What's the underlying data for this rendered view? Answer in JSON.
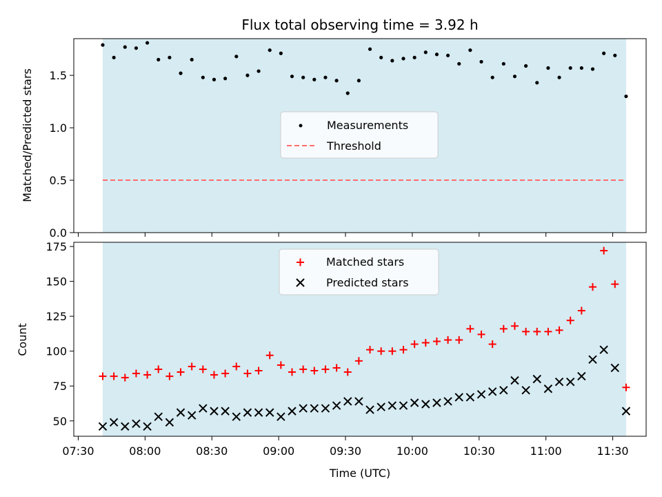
{
  "title": "Flux total observing time = 3.92 h",
  "colors": {
    "observing_window": "#add8e6",
    "measurement": "#000000",
    "threshold": "#ff6b6b",
    "matched": "#ff0000",
    "predicted": "#000000"
  },
  "chart_data": [
    {
      "type": "scatter",
      "panel": "top",
      "ylabel": "Matched/Predicted stars",
      "ylim": [
        0,
        1.85
      ],
      "yticks": [
        0.0,
        0.5,
        1.0,
        1.5
      ],
      "ytick_labels": [
        "0.0",
        "0.5",
        "1.0",
        "1.5"
      ],
      "observing_window_x": [
        "07:41",
        "11:36"
      ],
      "threshold": 0.5,
      "legend": {
        "placement": "center",
        "entries": [
          "Measurements",
          "Threshold"
        ]
      },
      "series": [
        {
          "name": "Measurements",
          "x": [
            "07:41",
            "07:46",
            "07:51",
            "07:56",
            "08:01",
            "08:06",
            "08:11",
            "08:16",
            "08:21",
            "08:26",
            "08:31",
            "08:36",
            "08:41",
            "08:46",
            "08:51",
            "08:56",
            "09:01",
            "09:06",
            "09:11",
            "09:16",
            "09:21",
            "09:26",
            "09:31",
            "09:36",
            "09:41",
            "09:46",
            "09:51",
            "09:56",
            "10:01",
            "10:06",
            "10:11",
            "10:16",
            "10:21",
            "10:26",
            "10:31",
            "10:36",
            "10:41",
            "10:46",
            "10:51",
            "10:56",
            "11:01",
            "11:06",
            "11:11",
            "11:16",
            "11:21",
            "11:26",
            "11:31",
            "11:36"
          ],
          "y": [
            1.79,
            1.67,
            1.77,
            1.76,
            1.81,
            1.65,
            1.67,
            1.52,
            1.65,
            1.48,
            1.46,
            1.47,
            1.68,
            1.5,
            1.54,
            1.74,
            1.71,
            1.49,
            1.48,
            1.46,
            1.48,
            1.45,
            1.33,
            1.45,
            1.75,
            1.67,
            1.64,
            1.66,
            1.67,
            1.72,
            1.7,
            1.69,
            1.61,
            1.74,
            1.63,
            1.48,
            1.61,
            1.49,
            1.59,
            1.43,
            1.57,
            1.48,
            1.57,
            1.57,
            1.56,
            1.71,
            1.69,
            1.3
          ]
        }
      ]
    },
    {
      "type": "scatter",
      "panel": "bottom",
      "xlabel": "Time (UTC)",
      "ylabel": "Count",
      "xlim": [
        "07:28",
        "11:45"
      ],
      "ylim": [
        39,
        178
      ],
      "yticks": [
        50,
        75,
        100,
        125,
        150,
        175
      ],
      "ytick_labels": [
        "50",
        "75",
        "100",
        "125",
        "150",
        "175"
      ],
      "xtick_labels": [
        "07:30",
        "08:00",
        "08:30",
        "09:00",
        "09:30",
        "10:00",
        "10:30",
        "11:00",
        "11:30"
      ],
      "observing_window_x": [
        "07:41",
        "11:36"
      ],
      "legend": {
        "placement": "upper center",
        "entries": [
          "Matched stars",
          "Predicted stars"
        ]
      },
      "series": [
        {
          "name": "Matched stars",
          "x": [
            "07:41",
            "07:46",
            "07:51",
            "07:56",
            "08:01",
            "08:06",
            "08:11",
            "08:16",
            "08:21",
            "08:26",
            "08:31",
            "08:36",
            "08:41",
            "08:46",
            "08:51",
            "08:56",
            "09:01",
            "09:06",
            "09:11",
            "09:16",
            "09:21",
            "09:26",
            "09:31",
            "09:36",
            "09:41",
            "09:46",
            "09:51",
            "09:56",
            "10:01",
            "10:06",
            "10:11",
            "10:16",
            "10:21",
            "10:26",
            "10:31",
            "10:36",
            "10:41",
            "10:46",
            "10:51",
            "10:56",
            "11:01",
            "11:06",
            "11:11",
            "11:16",
            "11:21",
            "11:26",
            "11:31",
            "11:36"
          ],
          "y": [
            82,
            82,
            81,
            84,
            83,
            87,
            82,
            85,
            89,
            87,
            83,
            84,
            89,
            84,
            86,
            97,
            90,
            85,
            87,
            86,
            87,
            88,
            85,
            93,
            101,
            100,
            100,
            101,
            105,
            106,
            107,
            108,
            108,
            116,
            112,
            105,
            116,
            118,
            114,
            114,
            114,
            115,
            122,
            129,
            146,
            172,
            148,
            74
          ]
        },
        {
          "name": "Predicted stars",
          "x": [
            "07:41",
            "07:46",
            "07:51",
            "07:56",
            "08:01",
            "08:06",
            "08:11",
            "08:16",
            "08:21",
            "08:26",
            "08:31",
            "08:36",
            "08:41",
            "08:46",
            "08:51",
            "08:56",
            "09:01",
            "09:06",
            "09:11",
            "09:16",
            "09:21",
            "09:26",
            "09:31",
            "09:36",
            "09:41",
            "09:46",
            "09:51",
            "09:56",
            "10:01",
            "10:06",
            "10:11",
            "10:16",
            "10:21",
            "10:26",
            "10:31",
            "10:36",
            "10:41",
            "10:46",
            "10:51",
            "10:56",
            "11:01",
            "11:06",
            "11:11",
            "11:16",
            "11:21",
            "11:26",
            "11:31",
            "11:36"
          ],
          "y": [
            46,
            49,
            46,
            48,
            46,
            53,
            49,
            56,
            54,
            59,
            57,
            57,
            53,
            56,
            56,
            56,
            53,
            57,
            59,
            59,
            59,
            61,
            64,
            64,
            58,
            60,
            61,
            61,
            63,
            62,
            63,
            64,
            67,
            67,
            69,
            71,
            72,
            79,
            72,
            80,
            73,
            78,
            78,
            82,
            94,
            101,
            88,
            57
          ]
        }
      ]
    }
  ]
}
